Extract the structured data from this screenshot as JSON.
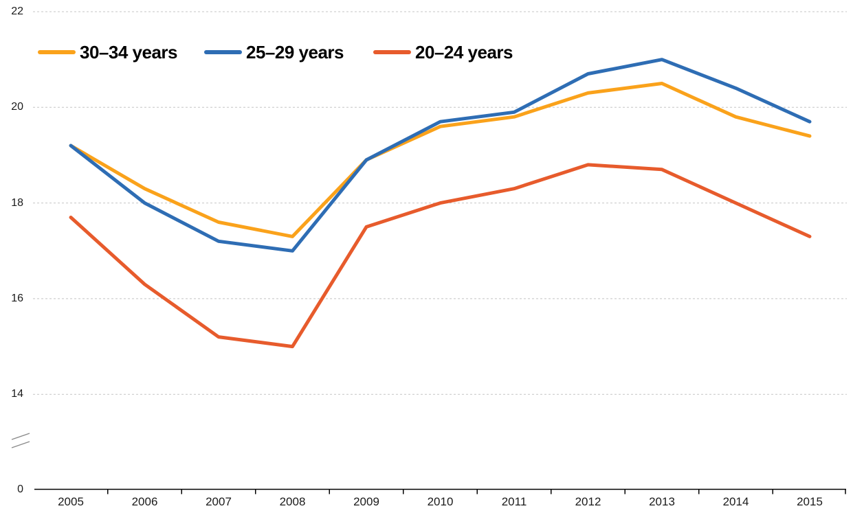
{
  "chart_data": {
    "type": "line",
    "title": "",
    "xlabel": "",
    "ylabel": "",
    "categories": [
      "2005",
      "2006",
      "2007",
      "2008",
      "2009",
      "2010",
      "2011",
      "2012",
      "2013",
      "2014",
      "2015"
    ],
    "series": [
      {
        "name": "30–34 years",
        "color": "#FAA21B",
        "values": [
          19.2,
          18.3,
          17.6,
          17.3,
          18.9,
          19.6,
          19.8,
          20.3,
          20.5,
          19.8,
          19.4
        ]
      },
      {
        "name": "25–29 years",
        "color": "#2E6DB4",
        "values": [
          19.2,
          18.0,
          17.2,
          17.0,
          18.9,
          19.7,
          19.9,
          20.7,
          21.0,
          20.4,
          19.7
        ]
      },
      {
        "name": "20–24 years",
        "color": "#E75B2C",
        "values": [
          17.7,
          16.3,
          15.2,
          15.0,
          17.5,
          18.0,
          18.3,
          18.8,
          18.7,
          18.0,
          17.3
        ]
      }
    ],
    "y_ticks": [
      0,
      14,
      16,
      18,
      20,
      22
    ],
    "y_axis_break": true,
    "grid": "horizontal-dashed",
    "legend_position": "top-left"
  },
  "colors": {
    "background": "#FFFFFF",
    "gridline": "#C4C4C4",
    "axis": "#000000",
    "axis_break_mark": "#8A8A8A",
    "tick_label": "#1A1A1A",
    "legend_text": "#000000"
  }
}
